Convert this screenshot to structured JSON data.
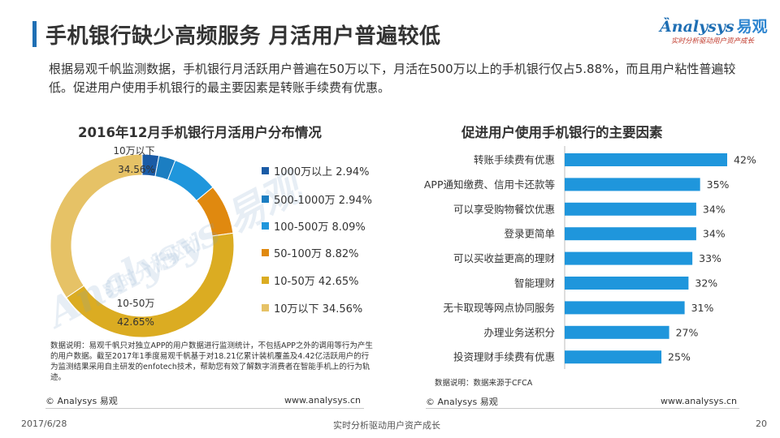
{
  "page": {
    "title": "手机银行缺少高频服务  月活用户普遍较低",
    "logo_text": "nalysys",
    "logo_cn": "易观",
    "logo_slogan": "实时分析驱动用户资产成长",
    "description": "根据易观千帆监测数据，手机银行月活跃用户普遍在50万以下，月活在500万以上的手机银行仅占5.88%，而且用户粘性普遍较低。促进用户使用手机银行的最主要因素是转账手续费有优惠。",
    "footer_left_copyright": "© Analysys 易观",
    "footer_left_url": "www.analysys.cn",
    "footer_right_copyright": "© Analysys 易观",
    "footer_right_url": "www.analysys.cn",
    "date": "2017/6/28",
    "slogan": "实时分析驱动用户资产成长",
    "page_number": "20"
  },
  "left_note": "数据说明：易观千帆只对独立APP的用户数据进行监测统计，不包括APP之外的调用等行为产生的用户数据。截至2017年1季度易观千帆基于对18.21亿累计装机覆盖及4.42亿活跃用户的行为监测结果采用自主研发的enfotech技术，帮助您有效了解数字消费者在智能手机上的行为轨迹。",
  "right_note": "数据说明：数据来源于CFCA",
  "chart_data": [
    {
      "type": "pie",
      "title": "2016年12月手机银行月活用户分布情况",
      "donut": true,
      "categories": [
        "1000万以上",
        "500-1000万",
        "100-500万",
        "50-100万",
        "10-50万",
        "10万以下"
      ],
      "values": [
        2.94,
        2.94,
        8.09,
        8.82,
        42.65,
        34.56
      ],
      "value_labels": [
        "2.94%",
        "2.94%",
        "8.09%",
        "8.82%",
        "42.65%",
        "34.56%"
      ],
      "colors": [
        "#1a5ba6",
        "#1b7ec2",
        "#1f96dc",
        "#e0890f",
        "#dbac22",
        "#e6c266"
      ],
      "slice_labels": [
        {
          "name": "10万以下",
          "value": "34.56%"
        },
        {
          "name": "10-50万",
          "value": "42.65%"
        }
      ],
      "legend_position": "right"
    },
    {
      "type": "bar",
      "orientation": "horizontal",
      "title": "促进用户使用手机银行的主要因素",
      "categories": [
        "转账手续费有优惠",
        "APP通知缴费、信用卡还款等",
        "可以享受购物餐饮优惠",
        "登录更简单",
        "可以买收益更高的理财",
        "智能理财",
        "无卡取现等网点协同服务",
        "办理业务送积分",
        "投资理财手续费有优惠"
      ],
      "values": [
        42,
        35,
        34,
        34,
        33,
        32,
        31,
        27,
        25
      ],
      "value_labels": [
        "42%",
        "35%",
        "34%",
        "34%",
        "33%",
        "32%",
        "31%",
        "27%",
        "25%"
      ],
      "xlim": [
        0,
        42
      ],
      "bar_color": "#1f96dc"
    }
  ]
}
